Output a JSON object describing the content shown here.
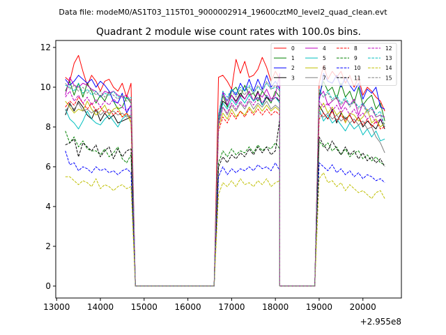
{
  "header": {
    "file_label": "Data file: modeM0/AS1T03_115T01_9000002914_19600cztM0_level2_quad_clean.evt"
  },
  "chart_data": {
    "type": "line",
    "title": "Quadrant 2 module wise count rates with 100.0s bins.",
    "xlabel": "",
    "ylabel": "",
    "x_offset_label": "+2.955e8",
    "xlim": [
      12980,
      20880
    ],
    "ylim": [
      -0.6,
      12.35
    ],
    "xticks": [
      13000,
      14000,
      15000,
      16000,
      17000,
      18000,
      19000,
      20000
    ],
    "yticks": [
      0,
      2,
      4,
      6,
      8,
      10,
      12
    ],
    "legend_position": "top-right",
    "segments": [
      {
        "start": 13200,
        "n": 16
      },
      {
        "start": 16700,
        "n": 15
      },
      {
        "start": 19000,
        "n": 16
      }
    ],
    "gaps": [
      {
        "from": 14800,
        "to": 16600
      },
      {
        "from": 18100,
        "to": 18900
      }
    ],
    "series": [
      {
        "name": "0",
        "color": "#ff0000",
        "dash": "solid",
        "seg_values": [
          [
            10.5,
            10.3,
            11.2,
            11.6,
            10.8,
            10.1,
            10.6,
            10.3,
            9.8,
            10.3,
            10.4,
            10.0,
            9.8,
            10.2,
            9.5,
            10.2
          ],
          [
            10.5,
            10.6,
            10.3,
            9.9,
            11.4,
            10.7,
            11.3,
            10.5,
            10.6,
            10.9,
            11.5,
            11.0,
            10.3,
            10.8,
            10.4
          ],
          [
            10.2,
            11.1,
            10.4,
            10.8,
            10.5,
            10.8,
            10.2,
            10.6,
            10.0,
            10.5,
            9.6,
            10.0,
            9.8,
            9.5,
            9.3,
            8.8
          ]
        ]
      },
      {
        "name": "1",
        "color": "#008000",
        "dash": "solid",
        "seg_values": [
          [
            9.8,
            10.3,
            9.6,
            10.2,
            9.5,
            10.2,
            9.8,
            9.2,
            9.6,
            9.3,
            9.8,
            9.3,
            8.9,
            9.0,
            9.5,
            9.2
          ],
          [
            8.2,
            9.6,
            9.0,
            9.8,
            10.0,
            9.5,
            10.1,
            9.6,
            9.7,
            9.3,
            9.8,
            9.5,
            9.2,
            9.8,
            9.5
          ],
          [
            9.6,
            10.3,
            9.8,
            10.0,
            9.4,
            10.2,
            9.5,
            9.8,
            9.2,
            10.0,
            9.1,
            9.4,
            9.6,
            8.9,
            9.2,
            8.3
          ]
        ]
      },
      {
        "name": "2",
        "color": "#0000ff",
        "dash": "solid",
        "seg_values": [
          [
            10.4,
            10.1,
            10.3,
            10.6,
            10.4,
            10.2,
            10.4,
            10.0,
            10.3,
            10.1,
            9.8,
            9.3,
            9.2,
            9.7,
            8.7,
            9.1
          ],
          [
            8.5,
            9.7,
            9.3,
            9.9,
            9.6,
            10.2,
            9.8,
            10.4,
            9.8,
            10.4,
            9.9,
            10.6,
            10.0,
            10.3,
            9.9
          ],
          [
            9.3,
            10.7,
            10.3,
            10.2,
            10.6,
            10.0,
            10.5,
            10.1,
            9.8,
            10.2,
            9.4,
            9.9,
            9.7,
            10.0,
            9.0,
            8.9
          ]
        ]
      },
      {
        "name": "3",
        "color": "#000000",
        "dash": "solid",
        "seg_values": [
          [
            8.6,
            9.2,
            8.8,
            9.3,
            9.0,
            8.6,
            8.4,
            8.9,
            8.3,
            8.7,
            8.4,
            8.6,
            8.2,
            8.3,
            8.4,
            8.5
          ],
          [
            8.5,
            9.3,
            9.1,
            9.6,
            9.3,
            9.7,
            9.4,
            9.8,
            9.3,
            9.8,
            9.1,
            9.5,
            9.3,
            9.5,
            9.3
          ],
          [
            9.1,
            8.7,
            8.4,
            8.9,
            8.2,
            8.7,
            8.4,
            8.6,
            8.2,
            8.5,
            8.0,
            8.3,
            8.1,
            7.9,
            8.4,
            7.9
          ]
        ]
      },
      {
        "name": "4",
        "color": "#bf00bf",
        "dash": "solid",
        "seg_values": [
          [
            9.6,
            10.5,
            10.1,
            10.0,
            10.2,
            10.1,
            9.9,
            9.8,
            9.5,
            9.8,
            9.7,
            9.8,
            9.6,
            9.5,
            9.6,
            9.3
          ],
          [
            8.3,
            9.8,
            9.1,
            9.6,
            9.2,
            9.6,
            9.4,
            9.8,
            9.3,
            9.7,
            9.5,
            9.9,
            9.4,
            9.6,
            10.7
          ],
          [
            9.5,
            9.8,
            9.1,
            9.3,
            9.5,
            8.9,
            9.3,
            9.1,
            9.4,
            8.6,
            9.2,
            8.8,
            9.0,
            8.5,
            8.6,
            8.5
          ]
        ]
      },
      {
        "name": "5",
        "color": "#00bfbf",
        "dash": "solid",
        "seg_values": [
          [
            8.9,
            8.4,
            8.2,
            7.9,
            8.3,
            8.8,
            8.4,
            8.2,
            8.1,
            8.4,
            8.6,
            8.3,
            8.0,
            8.4,
            8.6,
            8.5
          ],
          [
            8.3,
            9.2,
            8.9,
            9.4,
            9.1,
            9.5,
            9.2,
            9.6,
            9.3,
            9.5,
            9.1,
            9.6,
            9.3,
            9.5,
            9.2
          ],
          [
            8.9,
            8.3,
            8.6,
            8.2,
            8.4,
            8.1,
            7.8,
            8.2,
            7.9,
            8.1,
            7.6,
            7.9,
            7.5,
            7.8,
            7.3,
            7.4
          ]
        ]
      },
      {
        "name": "6",
        "color": "#bfbf00",
        "dash": "solid",
        "seg_values": [
          [
            9.3,
            9.0,
            8.7,
            8.9,
            8.8,
            9.3,
            8.9,
            8.6,
            8.8,
            9.1,
            8.6,
            8.9,
            9.0,
            8.5,
            8.7,
            8.2
          ],
          [
            8.0,
            8.7,
            8.4,
            8.9,
            8.5,
            8.8,
            8.6,
            9.0,
            8.7,
            9.1,
            8.8,
            9.1,
            8.8,
            9.0,
            8.8
          ],
          [
            8.8,
            9.2,
            8.7,
            9.0,
            8.6,
            8.8,
            8.2,
            8.7,
            8.6,
            8.3,
            8.5,
            8.9,
            8.2,
            8.4,
            8.0,
            8.2
          ]
        ]
      },
      {
        "name": "7",
        "color": "#808080",
        "dash": "solid",
        "seg_values": [
          [
            8.8,
            9.1,
            8.9,
            9.2,
            8.8,
            8.9,
            8.7,
            8.9,
            8.6,
            8.8,
            8.7,
            8.8,
            8.6,
            8.7,
            8.5,
            8.6
          ],
          [
            8.2,
            9.0,
            8.6,
            9.1,
            8.8,
            9.2,
            8.9,
            9.3,
            8.9,
            9.2,
            9.0,
            9.3,
            8.9,
            9.1,
            8.9
          ],
          [
            8.7,
            8.5,
            8.7,
            8.4,
            8.6,
            8.3,
            8.5,
            8.2,
            8.4,
            8.1,
            8.3,
            7.9,
            8.0,
            7.5,
            7.2,
            6.7
          ]
        ]
      },
      {
        "name": "8",
        "color": "#ff0000",
        "dash": "dashed",
        "seg_values": [
          [
            9.0,
            9.3,
            9.1,
            9.5,
            9.2,
            8.9,
            9.2,
            8.8,
            9.0,
            8.7,
            8.9,
            8.6,
            8.8,
            8.5,
            8.7,
            8.4
          ],
          [
            7.8,
            8.5,
            8.2,
            8.7,
            8.4,
            8.8,
            8.5,
            8.9,
            8.6,
            8.9,
            8.6,
            8.9,
            8.6,
            8.8,
            8.6
          ],
          [
            8.4,
            8.7,
            8.4,
            8.8,
            8.3,
            8.6,
            8.3,
            8.6,
            8.2,
            8.5,
            8.1,
            8.4,
            8.0,
            8.3,
            7.9,
            8.0
          ]
        ]
      },
      {
        "name": "9",
        "color": "#008000",
        "dash": "dashed",
        "seg_values": [
          [
            7.8,
            7.2,
            7.5,
            7.0,
            7.3,
            6.9,
            6.8,
            6.8,
            6.6,
            6.9,
            6.5,
            6.7,
            7.0,
            6.4,
            6.2,
            6.6
          ],
          [
            6.2,
            6.8,
            6.5,
            6.9,
            6.6,
            6.8,
            6.7,
            7.0,
            6.7,
            7.1,
            6.8,
            7.0,
            6.9,
            7.2,
            6.9
          ],
          [
            7.3,
            7.0,
            7.2,
            6.8,
            7.0,
            6.6,
            6.9,
            6.5,
            6.7,
            6.8,
            6.4,
            6.6,
            6.3,
            6.5,
            6.2,
            6.1
          ]
        ]
      },
      {
        "name": "10",
        "color": "#0000ff",
        "dash": "dashed",
        "seg_values": [
          [
            6.8,
            6.1,
            6.2,
            5.8,
            6.0,
            5.9,
            5.7,
            6.0,
            5.8,
            5.9,
            5.7,
            5.8,
            5.6,
            5.8,
            5.9,
            5.7
          ],
          [
            5.5,
            6.0,
            5.6,
            5.9,
            5.7,
            5.9,
            5.8,
            6.0,
            5.8,
            6.1,
            5.9,
            6.0,
            5.8,
            6.2,
            5.8
          ],
          [
            6.2,
            6.0,
            5.8,
            6.1,
            5.7,
            5.9,
            5.6,
            5.8,
            5.5,
            5.7,
            5.4,
            5.6,
            5.5,
            5.3,
            5.4,
            5.2
          ]
        ]
      },
      {
        "name": "11",
        "color": "#000000",
        "dash": "dashed",
        "seg_values": [
          [
            7.1,
            7.2,
            7.4,
            6.5,
            7.2,
            7.0,
            6.8,
            7.1,
            6.5,
            6.8,
            7.0,
            6.4,
            6.9,
            6.5,
            6.8,
            6.9
          ],
          [
            6.0,
            6.5,
            6.2,
            6.6,
            6.4,
            6.7,
            6.5,
            6.9,
            6.6,
            7.0,
            6.7,
            7.0,
            6.6,
            6.8,
            8.4
          ],
          [
            7.5,
            7.1,
            6.8,
            7.3,
            6.9,
            6.6,
            7.0,
            6.6,
            6.8,
            6.4,
            6.7,
            6.3,
            6.5,
            6.2,
            6.4,
            6.0
          ]
        ]
      },
      {
        "name": "12",
        "color": "#bf00bf",
        "dash": "dashed",
        "seg_values": [
          [
            9.5,
            9.8,
            9.3,
            9.6,
            9.2,
            9.5,
            9.1,
            9.4,
            9.0,
            9.3,
            9.1,
            9.4,
            9.2,
            9.0,
            8.8,
            9.1
          ],
          [
            8.1,
            9.0,
            8.7,
            9.2,
            8.9,
            9.3,
            9.0,
            9.4,
            9.1,
            9.5,
            9.2,
            9.6,
            9.3,
            9.5,
            9.4
          ],
          [
            9.3,
            9.0,
            9.2,
            8.8,
            9.1,
            8.7,
            9.0,
            8.6,
            8.9,
            8.5,
            8.7,
            8.4,
            8.6,
            8.2,
            8.4,
            8.1
          ]
        ]
      },
      {
        "name": "13",
        "color": "#00bfbf",
        "dash": "dashed",
        "seg_values": [
          [
            10.1,
            10.0,
            9.8,
            10.2,
            9.7,
            9.9,
            9.6,
            9.8,
            9.5,
            9.7,
            9.6,
            9.8,
            9.5,
            9.6,
            9.4,
            9.5
          ],
          [
            8.6,
            9.8,
            9.5,
            9.9,
            9.7,
            10.0,
            9.8,
            10.1,
            9.7,
            10.0,
            9.8,
            10.2,
            9.9,
            10.0,
            9.9
          ],
          [
            9.9,
            9.5,
            9.8,
            9.4,
            9.6,
            9.2,
            9.5,
            9.1,
            9.3,
            9.0,
            9.2,
            8.8,
            9.0,
            8.6,
            8.8,
            8.0
          ]
        ]
      },
      {
        "name": "14",
        "color": "#bfbf00",
        "dash": "dashed",
        "seg_values": [
          [
            5.5,
            5.5,
            5.3,
            5.1,
            5.3,
            5.2,
            5.0,
            5.4,
            4.9,
            5.1,
            5.0,
            4.8,
            5.0,
            5.1,
            4.9,
            5.0
          ],
          [
            4.6,
            5.2,
            5.0,
            5.3,
            5.0,
            5.4,
            5.1,
            5.2,
            5.0,
            5.3,
            5.1,
            5.4,
            5.0,
            5.2,
            5.3
          ],
          [
            5.4,
            5.7,
            5.2,
            5.3,
            5.0,
            5.2,
            4.8,
            5.1,
            4.9,
            4.7,
            4.8,
            4.6,
            4.4,
            4.7,
            4.8,
            4.4
          ]
        ]
      },
      {
        "name": "15",
        "color": "#808080",
        "dash": "dashed",
        "seg_values": [
          [
            10.2,
            9.9,
            10.1,
            9.8,
            10.0,
            9.7,
            9.9,
            9.6,
            9.8,
            9.5,
            9.7,
            9.6,
            9.4,
            9.6,
            9.3,
            9.4
          ],
          [
            8.4,
            9.6,
            9.3,
            9.8,
            9.5,
            9.9,
            9.6,
            10.0,
            9.7,
            10.1,
            9.8,
            10.3,
            9.9,
            10.1,
            9.8
          ],
          [
            9.8,
            9.5,
            9.7,
            9.3,
            9.5,
            9.1,
            9.4,
            9.0,
            9.3,
            8.9,
            9.1,
            8.7,
            8.9,
            8.5,
            8.6,
            8.0
          ]
        ]
      }
    ]
  }
}
